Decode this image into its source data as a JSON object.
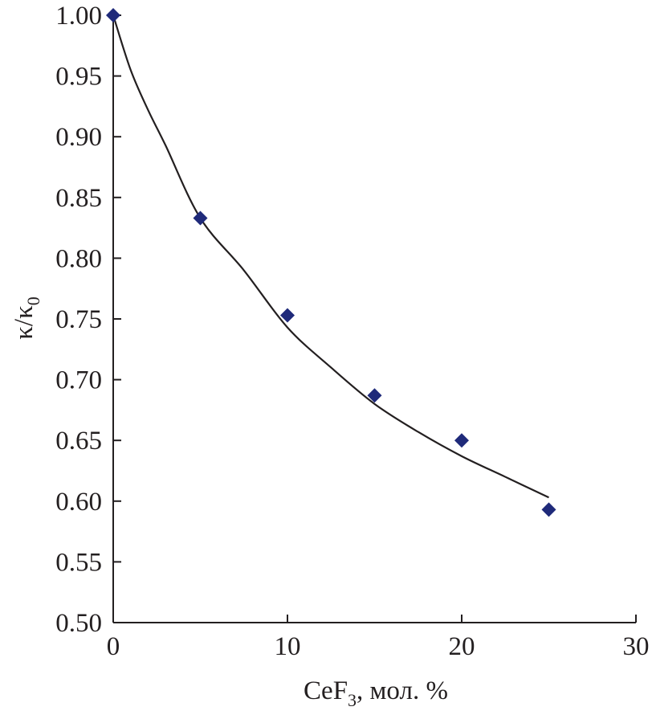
{
  "chart_data": {
    "type": "scatter",
    "title": "",
    "xlabel": "CeF3, мол. %",
    "xlabel_parts": {
      "main": "CeF",
      "subscript": "3",
      "suffix": ", мол. %"
    },
    "ylabel": "κ/κ0",
    "ylabel_parts": {
      "main": "κ/κ",
      "subscript": "0"
    },
    "xlim": [
      0,
      30
    ],
    "ylim": [
      0.5,
      1.0
    ],
    "x_ticks": [
      "0",
      "10",
      "20",
      "30"
    ],
    "y_ticks": [
      "0.50",
      "0.55",
      "0.60",
      "0.65",
      "0.70",
      "0.75",
      "0.80",
      "0.85",
      "0.90",
      "0.95",
      "1.00"
    ],
    "grid": false,
    "legend": "none",
    "series": [
      {
        "marker": "diamond",
        "color": "#1f2a7a",
        "x": [
          0,
          5,
          10,
          15,
          20,
          25
        ],
        "y": [
          1.0,
          0.833,
          0.753,
          0.687,
          0.65,
          0.593
        ]
      }
    ],
    "trend_line": {
      "color": "#231f20",
      "x": [
        0,
        1,
        2,
        3,
        5,
        7.5,
        10,
        12.5,
        15,
        17.5,
        20,
        22.5,
        25
      ],
      "y": [
        1.0,
        0.955,
        0.922,
        0.893,
        0.833,
        0.79,
        0.743,
        0.71,
        0.68,
        0.657,
        0.637,
        0.62,
        0.603
      ]
    }
  }
}
